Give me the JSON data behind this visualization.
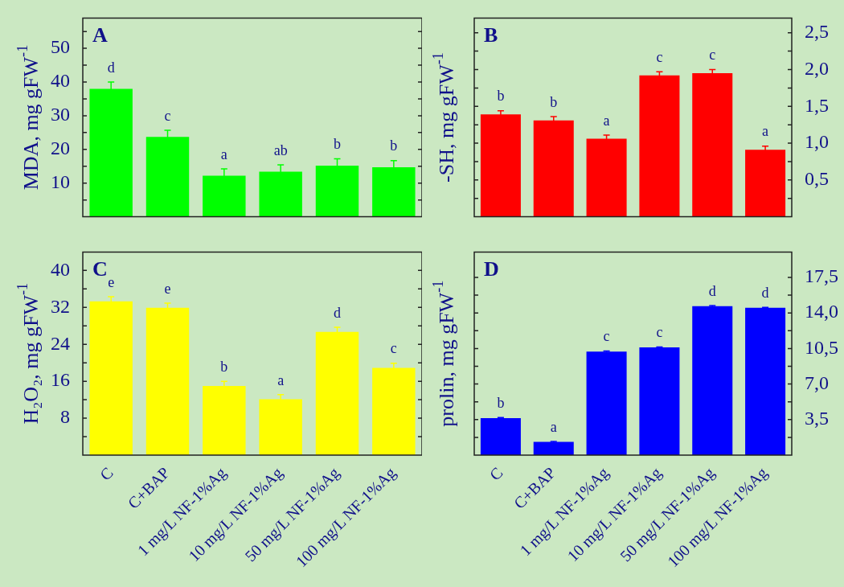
{
  "chart_data": [
    {
      "type": "bar",
      "title": "A",
      "ylabel": "MDA, mg gFW$^{-1}$",
      "tick_labels": "y",
      "categories": [
        "C",
        "C+BAP",
        "1 mg/L NF-1%Ag",
        "10 mg/L NF-1%Ag",
        "50 mg/L NF-1%Ag",
        "100 mg/L NF-1%Ag"
      ],
      "series": [
        {
          "color": "#00ff00",
          "values": [
            38,
            23.7,
            12.2,
            13.4,
            15.2,
            14.7
          ],
          "errors": [
            2,
            2,
            2,
            2,
            2,
            2
          ]
        }
      ],
      "ylim": [
        0,
        59
      ],
      "yticks": [
        {
          "value": 5,
          "label": null
        },
        10,
        {
          "value": 15,
          "label": null
        },
        20,
        {
          "value": 25,
          "label": null
        },
        30,
        {
          "value": 35,
          "label": null
        },
        40,
        {
          "value": 45,
          "label": null
        },
        50,
        {
          "value": 55,
          "label": null
        }
      ],
      "annotations": [
        {
          "text": "d",
          "x": "C",
          "y": 38
        },
        {
          "text": "c",
          "x": "C+BAP",
          "y": 23.7
        },
        {
          "text": "a",
          "x": "1 mg/L NF-1%Ag",
          "y": 12.2
        },
        {
          "text": "ab",
          "x": "10 mg/L NF-1%Ag",
          "y": 13.4
        },
        {
          "text": "b",
          "x": "50 mg/L NF-1%Ag",
          "y": 15.2
        },
        {
          "text": "b",
          "x": "100 mg/L NF-1%Ag",
          "y": 14.7
        }
      ]
    },
    {
      "type": "bar",
      "title": "B",
      "ylabel": "-SH, mg gFW$^{-1}$",
      "tick_labels": "y",
      "categories": [
        "C",
        "C+BAP",
        "1 mg/L NF-1%Ag",
        "10 mg/L NF-1%Ag",
        "50 mg/L NF-1%Ag",
        "100 mg/L NF-1%Ag"
      ],
      "series": [
        {
          "color": "#ff0000",
          "values": [
            1.39,
            1.31,
            1.06,
            1.92,
            1.95,
            0.91
          ],
          "errors": [
            0.05,
            0.05,
            0.05,
            0.05,
            0.05,
            0.05
          ]
        }
      ],
      "ylim": [
        0,
        2.7
      ],
      "yticks": [
        {
          "value": 0.25,
          "label": null
        },
        {
          "value": 0.5,
          "label": "0,5"
        },
        {
          "value": 0.75,
          "label": null
        },
        {
          "value": 1,
          "label": "1,0"
        },
        {
          "value": 1.25,
          "label": null
        },
        {
          "value": 1.5,
          "label": "1,5"
        },
        {
          "value": 1.75,
          "label": null
        },
        {
          "value": 2,
          "label": "2,0"
        },
        {
          "value": 2.25,
          "label": null
        },
        {
          "value": 2.5,
          "label": "2,5"
        }
      ],
      "annotations": [
        {
          "text": "b",
          "x": "C",
          "y": 1.39
        },
        {
          "text": "b",
          "x": "C+BAP",
          "y": 1.31
        },
        {
          "text": "a",
          "x": "1 mg/L NF-1%Ag",
          "y": 1.06
        },
        {
          "text": "c",
          "x": "10 mg/L NF-1%Ag",
          "y": 1.92
        },
        {
          "text": "c",
          "x": "50 mg/L NF-1%Ag",
          "y": 1.95
        },
        {
          "text": "a",
          "x": "100 mg/L NF-1%Ag",
          "y": 0.91
        }
      ]
    },
    {
      "type": "bar",
      "title": "C",
      "ylabel": "H₂O₂, mg gFW$^{-1}$",
      "categories": [
        "C",
        "C+BAP",
        "1 mg/L NF-1%Ag",
        "10 mg/L NF-1%Ag",
        "50 mg/L NF-1%Ag",
        "100 mg/L NF-1%Ag"
      ],
      "series": [
        {
          "color": "#ffff00",
          "values": [
            33.3,
            31.9,
            15,
            12.1,
            26.7,
            18.9
          ],
          "errors": [
            1,
            1,
            1,
            1,
            1,
            1
          ]
        }
      ],
      "ylim": [
        0,
        44
      ],
      "yticks": [
        {
          "value": 4,
          "label": null
        },
        8,
        {
          "value": 12,
          "label": null
        },
        16,
        {
          "value": 20,
          "label": null
        },
        24,
        {
          "value": 28,
          "label": null
        },
        32,
        {
          "value": 36,
          "label": null
        },
        40
      ],
      "annotations": [
        {
          "text": "e",
          "x": "C",
          "y": 33.3
        },
        {
          "text": "e",
          "x": "C+BAP",
          "y": 31.9
        },
        {
          "text": "b",
          "x": "1 mg/L NF-1%Ag",
          "y": 15
        },
        {
          "text": "a",
          "x": "10 mg/L NF-1%Ag",
          "y": 12.1
        },
        {
          "text": "d",
          "x": "50 mg/L NF-1%Ag",
          "y": 26.7
        },
        {
          "text": "c",
          "x": "100 mg/L NF-1%Ag",
          "y": 18.9
        }
      ]
    },
    {
      "type": "bar",
      "title": "D",
      "ylabel": "prolin, mg gFW$^{-1}$",
      "categories": [
        "C",
        "C+BAP",
        "1 mg/L NF-1%Ag",
        "10 mg/L NF-1%Ag",
        "50 mg/L NF-1%Ag",
        "100 mg/L NF-1%Ag"
      ],
      "series": [
        {
          "color": "#0000ff",
          "values": [
            3.65,
            1.3,
            10.2,
            10.6,
            14.67,
            14.5
          ],
          "errors": [
            0.05,
            0.05,
            0.05,
            0.05,
            0.05,
            0.05
          ]
        }
      ],
      "ylim": [
        0,
        20
      ],
      "yticks": [
        {
          "value": 1.75,
          "label": null
        },
        {
          "value": 3.5,
          "label": "3,5"
        },
        {
          "value": 5.25,
          "label": null
        },
        {
          "value": 7,
          "label": "7,0"
        },
        {
          "value": 8.75,
          "label": null
        },
        {
          "value": 10.5,
          "label": "10,5"
        },
        {
          "value": 12.25,
          "label": null
        },
        {
          "value": 14,
          "label": "14,0"
        },
        {
          "value": 15.75,
          "label": null
        },
        {
          "value": 17.5,
          "label": "17,5"
        }
      ],
      "annotations": [
        {
          "text": "b",
          "x": "C",
          "y": 3.65
        },
        {
          "text": "a",
          "x": "C+BAP",
          "y": 1.3
        },
        {
          "text": "c",
          "x": "1 mg/L NF-1%Ag",
          "y": 10.2
        },
        {
          "text": "c",
          "x": "10 mg/L NF-1%Ag",
          "y": 10.6
        },
        {
          "text": "d",
          "x": "50 mg/L NF-1%Ag",
          "y": 14.67
        },
        {
          "text": "d",
          "x": "100 mg/L NF-1%Ag",
          "y": 14.5
        }
      ]
    }
  ]
}
